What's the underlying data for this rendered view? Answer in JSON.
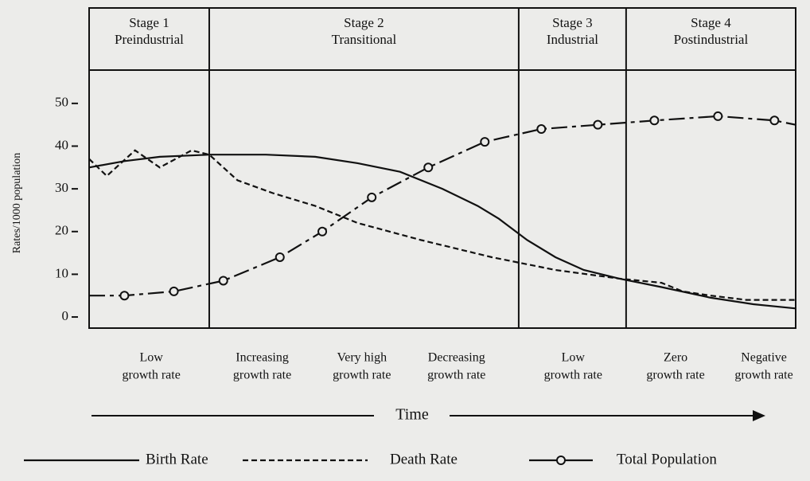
{
  "chart_data": {
    "type": "line",
    "ylabel": "Rates/1000 population",
    "xlim": [
      0,
      100
    ],
    "ylim": [
      -2.6,
      57.8
    ],
    "yticks": [
      0,
      10,
      20,
      30,
      40,
      50
    ],
    "stages": [
      {
        "lines": [
          "Stage 1",
          "Preindustrial"
        ]
      },
      {
        "lines": [
          "Stage 2",
          "Transitional"
        ]
      },
      {
        "lines": [
          "Stage 3",
          "Industrial"
        ]
      },
      {
        "lines": [
          "Stage 4",
          "Postindustrial"
        ]
      }
    ],
    "stage_boundaries": [
      17,
      60.8,
      76
    ],
    "growth_labels": [
      {
        "lines": [
          "Low",
          "growth rate"
        ],
        "x": 8.8
      },
      {
        "lines": [
          "Increasing",
          "growth rate"
        ],
        "x": 24.5
      },
      {
        "lines": [
          "Very high",
          "growth rate"
        ],
        "x": 38.6
      },
      {
        "lines": [
          "Decreasing",
          "growth rate"
        ],
        "x": 52
      },
      {
        "lines": [
          "Low",
          "growth rate"
        ],
        "x": 68.5
      },
      {
        "lines": [
          "Zero",
          "growth rate"
        ],
        "x": 83
      },
      {
        "lines": [
          "Negative",
          "growth rate"
        ],
        "x": 95.5
      }
    ],
    "time_label": "Time",
    "series": [
      {
        "name": "Birth Rate",
        "color": "#111111",
        "style": "solid",
        "x": [
          0,
          5,
          10,
          17,
          25,
          32,
          38,
          44,
          50,
          55,
          58,
          62,
          66,
          70,
          75,
          81,
          88,
          94,
          100
        ],
        "values": [
          35,
          36.5,
          37.5,
          38,
          38,
          37.5,
          36,
          34,
          30,
          26,
          23,
          18,
          14,
          11,
          9,
          7,
          4.5,
          3,
          2
        ]
      },
      {
        "name": "Death Rate",
        "color": "#111111",
        "style": "dashed",
        "x": [
          0,
          2.5,
          6.5,
          10,
          14.5,
          17,
          21,
          26,
          32,
          38,
          47,
          57,
          66,
          75,
          81,
          84,
          88,
          93,
          100
        ],
        "values": [
          37,
          33,
          39,
          35,
          39,
          38,
          32,
          29,
          26,
          22,
          18,
          14,
          11,
          9,
          8,
          6,
          5,
          4,
          4
        ]
      },
      {
        "name": "Total Population",
        "color": "#111111",
        "style": "dashdot-circles",
        "x": [
          0,
          5,
          12,
          19,
          27,
          33,
          40,
          48,
          56,
          64,
          72,
          80,
          89,
          97,
          100
        ],
        "values": [
          5,
          5,
          6,
          8.5,
          14,
          20,
          28,
          35,
          41,
          44,
          45,
          46,
          47,
          46,
          45
        ]
      }
    ]
  }
}
